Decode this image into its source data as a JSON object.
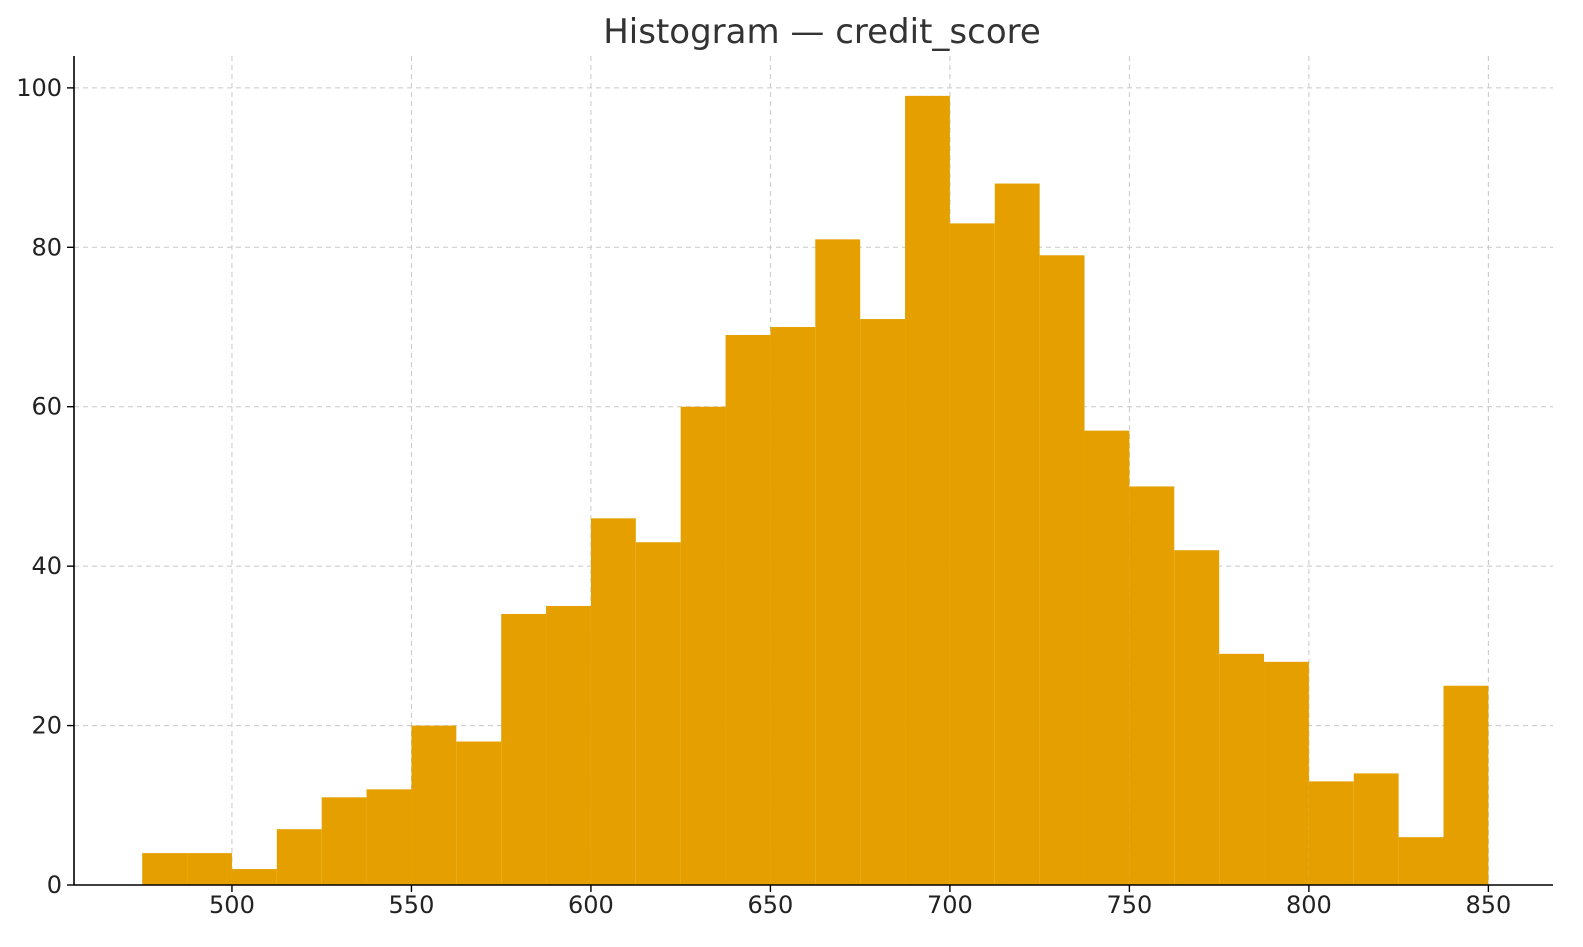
{
  "chart_data": {
    "type": "bar",
    "title": "Histogram — credit_score",
    "xlabel": "",
    "ylabel": "",
    "bar_color": "#e5a000",
    "grid": true,
    "legend": "none",
    "bin_edges": [
      475,
      487.5,
      500,
      512.5,
      525,
      537.5,
      550,
      562.5,
      575,
      587.5,
      600,
      612.5,
      625,
      637.5,
      650,
      662.5,
      675,
      687.5,
      700,
      712.5,
      725,
      737.5,
      750,
      762.5,
      775,
      787.5,
      800,
      812.5,
      825,
      837.5,
      850
    ],
    "values": [
      4,
      4,
      2,
      7,
      11,
      12,
      20,
      18,
      34,
      35,
      46,
      43,
      60,
      69,
      70,
      81,
      71,
      99,
      83,
      88,
      79,
      57,
      50,
      42,
      29,
      28,
      13,
      14,
      6,
      25
    ],
    "xlim": [
      456,
      868
    ],
    "ylim": [
      0,
      104
    ],
    "x_ticks": [
      500,
      550,
      600,
      650,
      700,
      750,
      800,
      850
    ],
    "y_ticks": [
      0,
      20,
      40,
      60,
      80,
      100
    ]
  }
}
